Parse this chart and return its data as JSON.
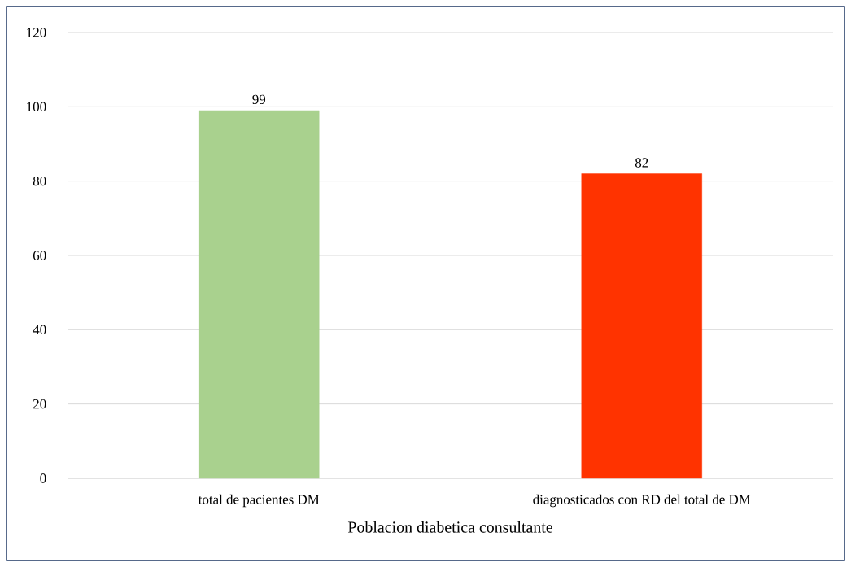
{
  "chart_data": {
    "type": "bar",
    "xlabel": "Poblacion diabetica consultante",
    "categories": [
      "total de pacientes DM",
      "diagnosticados con RD del total de DM"
    ],
    "values": [
      99,
      82
    ],
    "colors": [
      "#a9d18e",
      "#ff3300"
    ],
    "ylim": [
      0,
      120
    ],
    "yticks": [
      0,
      20,
      40,
      60,
      80,
      100,
      120
    ],
    "grid": "y",
    "data_labels": true
  }
}
